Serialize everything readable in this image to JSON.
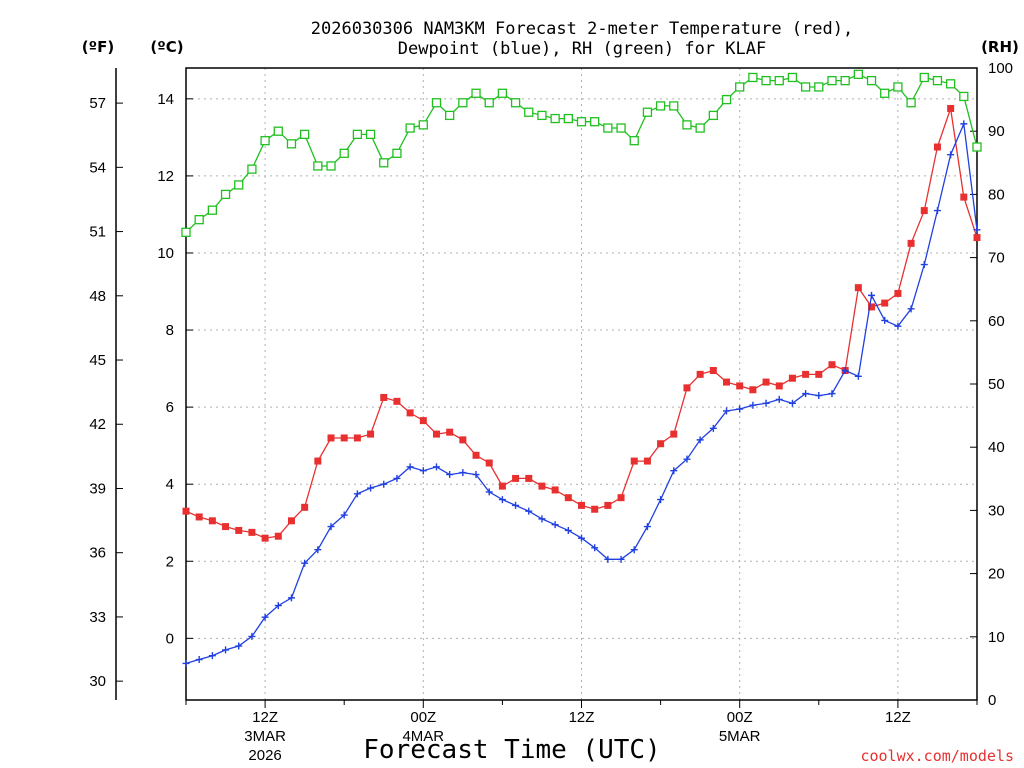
{
  "title": {
    "line1": "2026030306 NAM3KM Forecast 2-meter Temperature (red),",
    "line2": "Dewpoint (blue), RH (green) for KLAF"
  },
  "units": {
    "fahrenheit": "(ºF)",
    "celsius": "(ºC)",
    "rh": "(RH)"
  },
  "credit": "coolwx.com/models",
  "colors": {
    "temperature": "#e83030",
    "dewpoint": "#2040e0",
    "rh": "#20c020"
  },
  "chart_data": {
    "type": "line",
    "title": "2026030306 NAM3KM Forecast 2-meter Temperature (red), Dewpoint (blue), RH (green) for KLAF",
    "xlabel": "Forecast Time (UTC)",
    "x_unit": "forecast hour",
    "x_range": [
      6,
      66
    ],
    "left_axis": {
      "label": "(ºC)",
      "range": [
        -1.6,
        14.8
      ],
      "ticks": [
        0,
        2,
        4,
        6,
        8,
        10,
        12,
        14
      ]
    },
    "far_left_axis": {
      "label": "(ºF)",
      "ticks": [
        30,
        33,
        36,
        39,
        42,
        45,
        48,
        51,
        54,
        57
      ]
    },
    "right_axis": {
      "label": "(RH)",
      "range": [
        0,
        100
      ],
      "ticks": [
        0,
        10,
        20,
        30,
        40,
        50,
        60,
        70,
        80,
        90,
        100
      ]
    },
    "x_ticks": [
      {
        "hour": 12,
        "label": "12Z",
        "sub1": "3MAR",
        "sub2": "2026"
      },
      {
        "hour": 24,
        "label": "00Z",
        "sub1": "4MAR",
        "sub2": ""
      },
      {
        "hour": 36,
        "label": "12Z",
        "sub1": "",
        "sub2": ""
      },
      {
        "hour": 48,
        "label": "00Z",
        "sub1": "5MAR",
        "sub2": ""
      },
      {
        "hour": 60,
        "label": "12Z",
        "sub1": "",
        "sub2": ""
      }
    ],
    "x": [
      6,
      7,
      8,
      9,
      10,
      11,
      12,
      13,
      14,
      15,
      16,
      17,
      18,
      19,
      20,
      21,
      22,
      23,
      24,
      25,
      26,
      27,
      28,
      29,
      30,
      31,
      32,
      33,
      34,
      35,
      36,
      37,
      38,
      39,
      40,
      41,
      42,
      43,
      44,
      45,
      46,
      47,
      48,
      49,
      50,
      51,
      52,
      53,
      54,
      55,
      56,
      57,
      58,
      59,
      60,
      61,
      62,
      63,
      64,
      65,
      66
    ],
    "series": [
      {
        "name": "Temperature",
        "unit": "C",
        "axis": "left",
        "marker": "filled-square",
        "color": "#e83030",
        "values": [
          3.3,
          3.15,
          3.05,
          2.9,
          2.8,
          2.75,
          2.6,
          2.65,
          3.05,
          3.4,
          4.6,
          5.2,
          5.2,
          5.2,
          5.3,
          6.25,
          6.15,
          5.85,
          5.65,
          5.3,
          5.35,
          5.15,
          4.75,
          4.55,
          3.95,
          4.15,
          4.15,
          3.95,
          3.85,
          3.65,
          3.45,
          3.35,
          3.45,
          3.65,
          4.6,
          4.6,
          5.05,
          5.3,
          6.5,
          6.85,
          6.95,
          6.65,
          6.55,
          6.45,
          6.65,
          6.55,
          6.75,
          6.85,
          6.85,
          7.1,
          6.95,
          9.1,
          8.6,
          8.7,
          8.95,
          10.25,
          11.1,
          12.75,
          13.75,
          11.45,
          10.4
        ]
      },
      {
        "name": "Dewpoint",
        "unit": "C",
        "axis": "left",
        "marker": "plus",
        "color": "#2040e0",
        "values": [
          -0.65,
          -0.55,
          -0.45,
          -0.3,
          -0.2,
          0.05,
          0.55,
          0.85,
          1.05,
          1.95,
          2.3,
          2.9,
          3.2,
          3.75,
          3.9,
          4.0,
          4.15,
          4.45,
          4.35,
          4.45,
          4.25,
          4.3,
          4.25,
          3.8,
          3.6,
          3.45,
          3.3,
          3.1,
          2.95,
          2.8,
          2.6,
          2.35,
          2.05,
          2.05,
          2.3,
          2.9,
          3.6,
          4.35,
          4.65,
          5.15,
          5.45,
          5.9,
          5.95,
          6.05,
          6.1,
          6.2,
          6.1,
          6.35,
          6.3,
          6.35,
          6.95,
          6.8,
          8.9,
          8.25,
          8.1,
          8.55,
          9.7,
          11.1,
          12.55,
          13.35,
          10.6
        ]
      },
      {
        "name": "RH",
        "unit": "%",
        "axis": "right",
        "marker": "open-square",
        "color": "#20c020",
        "values": [
          74,
          76,
          77.5,
          80,
          81.5,
          84,
          88.5,
          90,
          88,
          89.5,
          84.5,
          84.5,
          86.5,
          89.5,
          89.5,
          85,
          86.5,
          90.5,
          91,
          94.5,
          92.5,
          94.5,
          96,
          94.5,
          96,
          94.5,
          93,
          92.5,
          92,
          92,
          91.5,
          91.5,
          90.5,
          90.5,
          88.5,
          93,
          94,
          94,
          91,
          90.5,
          92.5,
          95,
          97,
          98.5,
          98,
          98,
          98.5,
          97,
          97,
          98,
          98,
          99,
          98,
          96,
          97,
          94.5,
          98.5,
          98,
          97.5,
          95.5,
          87.5
        ]
      }
    ]
  }
}
